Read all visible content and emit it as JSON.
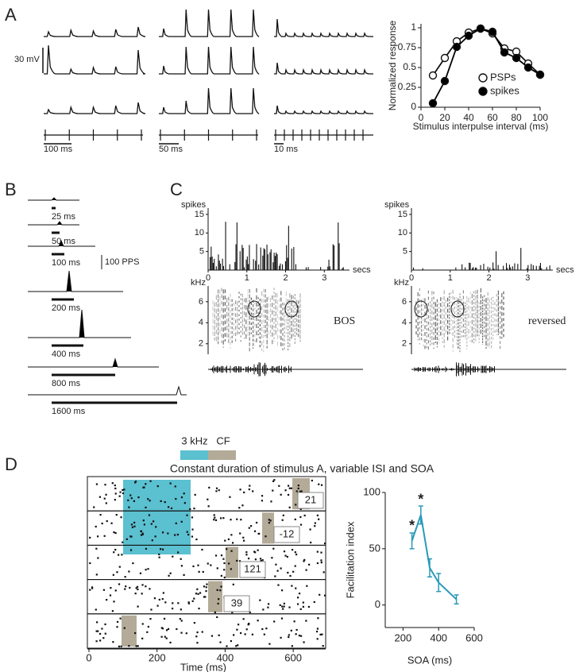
{
  "panel_labels": [
    "A",
    "B",
    "C",
    "D"
  ],
  "traces_a": {
    "voltage_scale": "30 mV",
    "time_scales": [
      "100 ms",
      "50 ms",
      "10 ms"
    ]
  },
  "rate_b": {
    "durations": [
      "25 ms",
      "50 ms",
      "100 ms",
      "200 ms",
      "400 ms",
      "800 ms",
      "1600 ms"
    ],
    "rate_scale": "100 PPS"
  },
  "song_c": [
    {
      "y_label": "spikes",
      "ylim": [
        0,
        16.7
      ],
      "yticks": [
        5,
        10,
        15
      ],
      "x_label": "secs",
      "xlim": [
        0,
        3.65
      ],
      "xticks": [
        0,
        1,
        2,
        3
      ],
      "freq_label": "kHz",
      "flim": [
        1,
        7.5
      ],
      "freq_ticks": [
        2,
        4,
        6
      ],
      "stimulus": "BOS"
    },
    {
      "y_label": "spikes",
      "ylim": [
        0,
        16.7
      ],
      "yticks": [
        5,
        10,
        15
      ],
      "x_label": "secs",
      "xlim": [
        0,
        3.65
      ],
      "xticks": [
        0,
        1,
        2,
        3
      ],
      "freq_label": "kHz",
      "flim": [
        1,
        7.5
      ],
      "freq_ticks": [
        2,
        4,
        6
      ],
      "stimulus": "reversed"
    }
  ],
  "raster_d": {
    "legend": [
      "3 kHz",
      "CF"
    ],
    "legend_colors": [
      "#5bc0d0",
      "#b3ab98"
    ],
    "title": "Constant duration of stimulus A, variable ISI and SOA",
    "xlim": [
      0,
      700
    ],
    "xticks": [
      0,
      200,
      400,
      600
    ],
    "x_label": "Time (ms)",
    "trial_labels": [
      "21",
      "-12",
      "121",
      "39"
    ]
  },
  "chart_data": [
    {
      "type": "line",
      "x_label": "Stimulus interpulse interval (ms)",
      "y_label": "Normalized response",
      "x": [
        10,
        20,
        30,
        40,
        50,
        60,
        70,
        80,
        90,
        100
      ],
      "series": [
        {
          "name": "PSPs",
          "color": "#ffffff",
          "values": [
            0.4,
            0.62,
            0.83,
            0.94,
            0.99,
            0.93,
            0.74,
            0.7,
            0.55,
            0.41
          ]
        },
        {
          "name": "spikes",
          "color": "#000000",
          "values": [
            0.05,
            0.33,
            0.76,
            0.9,
            0.99,
            0.95,
            0.69,
            0.62,
            0.5,
            0.41
          ]
        }
      ],
      "xlim": [
        0,
        100
      ],
      "xticks": [
        0,
        20,
        40,
        60,
        80,
        100
      ],
      "ylim": [
        0,
        1.05
      ],
      "yticks": [
        0,
        0.25,
        0.5,
        0.75,
        1
      ],
      "legend": "lower right"
    },
    {
      "type": "line",
      "x_label": "SOA (ms)",
      "y_label": "Facilitation index",
      "x": [
        250,
        300,
        350,
        400,
        500
      ],
      "series": [
        {
          "color": "#2a9ab8",
          "values": [
            57,
            80,
            33,
            20,
            5
          ],
          "errors": [
            7,
            8,
            8,
            8,
            4
          ]
        }
      ],
      "annotations": [
        {
          "text": "*",
          "x": 250,
          "y": 70
        },
        {
          "text": "*",
          "x": 300,
          "y": 93
        }
      ],
      "xlim": [
        100,
        600
      ],
      "xticks": [
        200,
        400,
        600
      ],
      "ylim": [
        -20,
        100
      ],
      "yticks": [
        0,
        50,
        100
      ]
    }
  ]
}
